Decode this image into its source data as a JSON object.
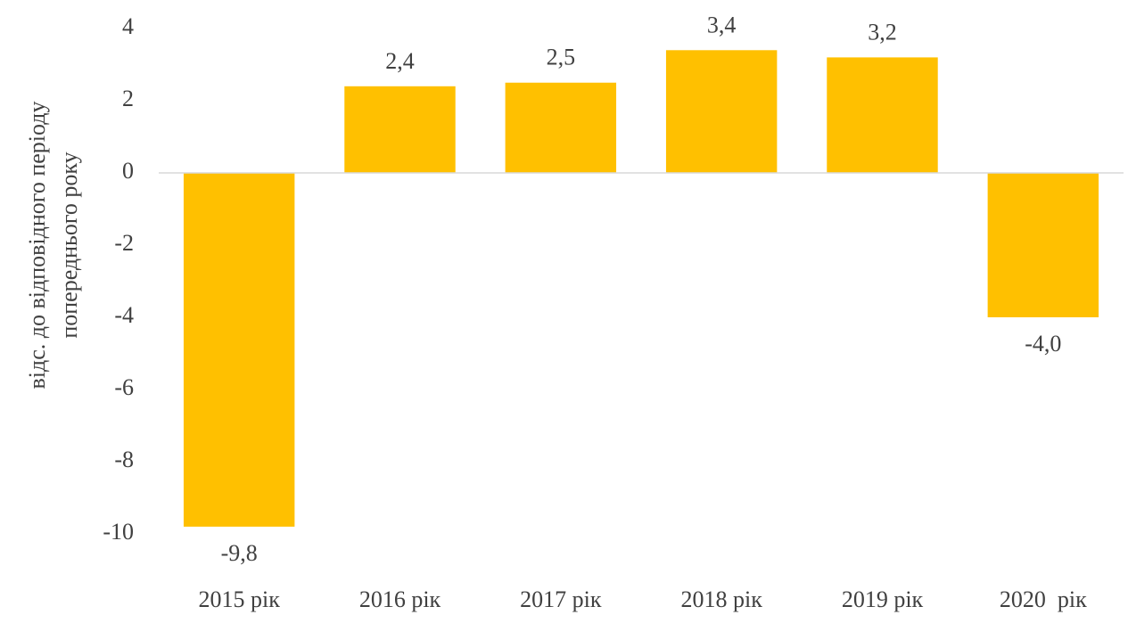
{
  "chart_data": {
    "type": "bar",
    "ylabel": [
      "відс. до відповідного періоду",
      "попереднього року"
    ],
    "categories": [
      "2015 рік",
      "2016 рік",
      "2017 рік",
      "2018 рік",
      "2019 рік",
      "2020  рік"
    ],
    "values": [
      -9.8,
      2.4,
      2.5,
      3.4,
      3.2,
      -4.0
    ],
    "value_labels": [
      "-9,8",
      "2,4",
      "2,5",
      "3,4",
      "3,2",
      "-4,0"
    ],
    "color": "#ffc000",
    "ylim": [
      -10,
      4
    ],
    "yticks": [
      4,
      2,
      0,
      -2,
      -4,
      -6,
      -8,
      -10
    ],
    "grid": false
  }
}
